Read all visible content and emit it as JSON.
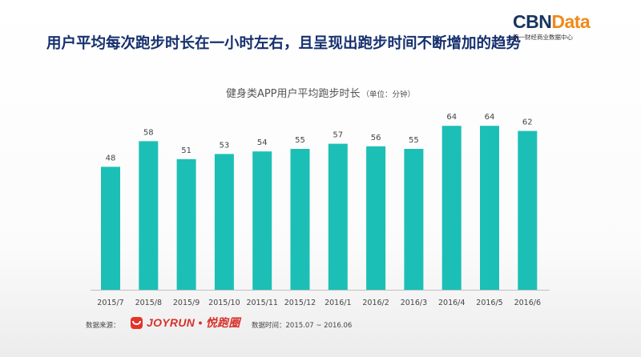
{
  "headline": "用户平均每次跑步时长在一小时左右，且呈现出跑步时间不断增加的趋势",
  "logo": {
    "main_cbn": "CBN",
    "main_data": "Data",
    "sub": "第一财经商业数据中心"
  },
  "footer": {
    "source_label": "数据来源：",
    "source_name": "JOYRUN • 悦跑圈",
    "period": "数据时间：2015.07 ~ 2016.06"
  },
  "colors": {
    "bar": "#1cbfb6",
    "headline": "#16306e",
    "logo_orange": "#f08a19",
    "joyrun_red": "#e5332a"
  },
  "chart_data": {
    "type": "bar",
    "title": "健身类APP用户平均跑步时长",
    "unit_note": "（单位：分钟）",
    "categories": [
      "2015/7",
      "2015/8",
      "2015/9",
      "2015/10",
      "2015/11",
      "2015/12",
      "2016/1",
      "2016/2",
      "2016/3",
      "2016/4",
      "2016/5",
      "2016/6"
    ],
    "values": [
      48,
      58,
      51,
      53,
      54,
      55,
      57,
      56,
      55,
      64,
      64,
      62
    ],
    "xlabel": "",
    "ylabel": "",
    "ylim": [
      0,
      70
    ],
    "grid": false,
    "legend": "none",
    "data_labels": true
  }
}
